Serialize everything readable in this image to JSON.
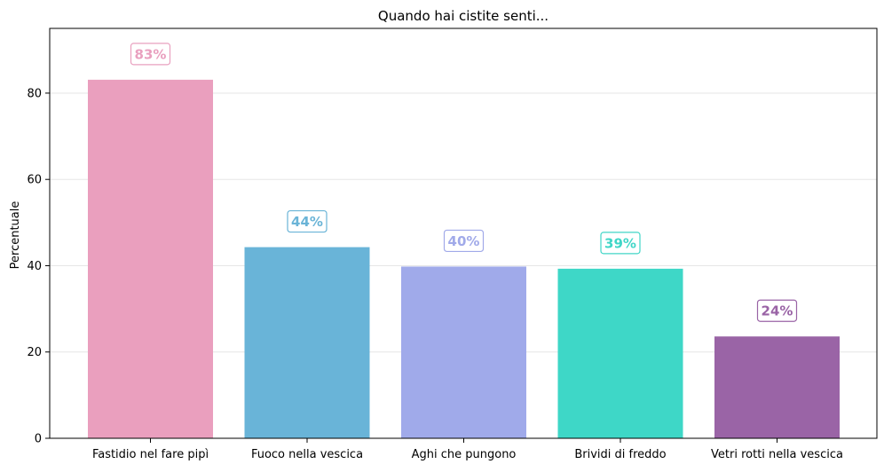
{
  "chart_data": {
    "type": "bar",
    "title": "Quando hai cistite senti...",
    "xlabel": "",
    "ylabel": "Percentuale",
    "categories": [
      "Fastidio nel fare pipì",
      "Fuoco nella vescica",
      "Aghi che pungono",
      "Brividi di freddo",
      "Vetri rotti nella vescica"
    ],
    "values": [
      83.1,
      44.3,
      39.8,
      39.3,
      23.6
    ],
    "data_labels": [
      "83%",
      "44%",
      "40%",
      "39%",
      "24%"
    ],
    "colors": [
      "#EA9FBE",
      "#69B4D8",
      "#A0AAEA",
      "#3ED7C7",
      "#9A64A6"
    ],
    "label_colors": [
      "#E9A0BF",
      "#6AB4D7",
      "#A1AAE9",
      "#40D6C7",
      "#9A64A6"
    ],
    "ylim": [
      0,
      95
    ],
    "yticks": [
      0,
      20,
      40,
      60,
      80
    ],
    "grid": "y"
  }
}
